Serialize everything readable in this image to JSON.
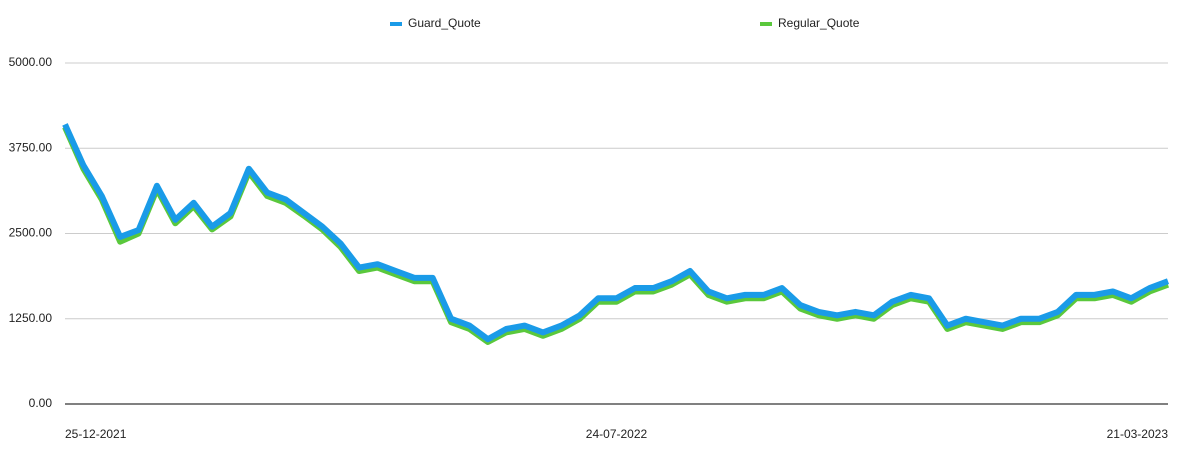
{
  "chart_data": {
    "type": "line",
    "categories": [
      "25-12-2021",
      null,
      null,
      null,
      null,
      null,
      null,
      null,
      null,
      null,
      null,
      null,
      null,
      null,
      null,
      null,
      null,
      null,
      null,
      null,
      null,
      null,
      null,
      null,
      null,
      null,
      null,
      null,
      null,
      null,
      "24-07-2022",
      null,
      null,
      null,
      null,
      null,
      null,
      null,
      null,
      null,
      null,
      null,
      null,
      null,
      null,
      null,
      null,
      null,
      null,
      null,
      null,
      null,
      null,
      null,
      null,
      null,
      null,
      null,
      null,
      null,
      "21-03-2023"
    ],
    "series": [
      {
        "name": "Regular_Quote",
        "color": "#5ac83c",
        "values": [
          4060,
          3450,
          3000,
          2380,
          2500,
          3150,
          2650,
          2900,
          2560,
          2750,
          3400,
          3050,
          2950,
          2760,
          2560,
          2300,
          1950,
          2000,
          1900,
          1800,
          1800,
          1200,
          1100,
          910,
          1050,
          1100,
          1000,
          1100,
          1250,
          1500,
          1500,
          1650,
          1650,
          1750,
          1900,
          1600,
          1500,
          1550,
          1550,
          1650,
          1400,
          1300,
          1250,
          1300,
          1250,
          1450,
          1550,
          1500,
          1100,
          1200,
          1150,
          1100,
          1200,
          1200,
          1300,
          1550,
          1550,
          1600,
          1500,
          1650,
          1750
        ]
      },
      {
        "name": "Guard_Quote",
        "color": "#1a9be8",
        "values": [
          4100,
          3500,
          3050,
          2450,
          2550,
          3200,
          2700,
          2950,
          2600,
          2800,
          3450,
          3100,
          3000,
          2800,
          2600,
          2350,
          2000,
          2050,
          1950,
          1850,
          1850,
          1250,
          1150,
          950,
          1100,
          1150,
          1050,
          1150,
          1300,
          1550,
          1550,
          1700,
          1700,
          1800,
          1950,
          1650,
          1550,
          1600,
          1600,
          1700,
          1450,
          1350,
          1300,
          1350,
          1300,
          1500,
          1600,
          1550,
          1150,
          1250,
          1200,
          1150,
          1250,
          1250,
          1350,
          1600,
          1600,
          1650,
          1550,
          1700,
          1800
        ]
      }
    ],
    "ylim": [
      0,
      5000
    ],
    "yticks": [
      {
        "value": 0,
        "label": "0.00"
      },
      {
        "value": 1250,
        "label": "1250.00"
      },
      {
        "value": 2500,
        "label": "2500.00"
      },
      {
        "value": 3750,
        "label": "3750.00"
      },
      {
        "value": 5000,
        "label": "5000.00"
      }
    ],
    "grid": true
  }
}
